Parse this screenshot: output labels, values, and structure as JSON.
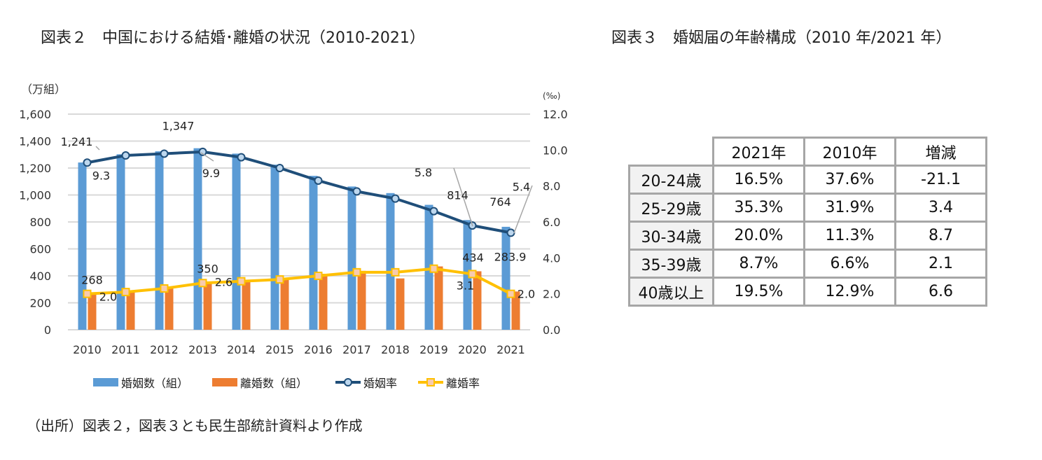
{
  "figure2_title": "図表２　中国における結婚･離婚の状況（2010-2021）",
  "figure3_title": "図表３　婚姻届の年齢構成（2010 年/2021 年）",
  "source_note": "（出所）図表２，図表３とも民生部統計資料より作成",
  "chart_data": {
    "type": "bar+line",
    "categories": [
      "2010",
      "2011",
      "2012",
      "2013",
      "2014",
      "2015",
      "2016",
      "2017",
      "2018",
      "2019",
      "2020",
      "2021"
    ],
    "left_axis": {
      "unit_label": "（万組）",
      "range": [
        0,
        1600
      ],
      "ticks": [
        "0",
        "200",
        "400",
        "600",
        "800",
        "1,000",
        "1,200",
        "1,400",
        "1,600"
      ]
    },
    "right_axis": {
      "unit_label": "(‰)",
      "range": [
        0,
        12
      ],
      "ticks": [
        "0.0",
        "2.0",
        "4.0",
        "6.0",
        "8.0",
        "10.0",
        "12.0"
      ]
    },
    "grid": true,
    "legend_position": "bottom",
    "series": [
      {
        "name": "婚姻数（組）",
        "type": "bar",
        "axis": "left",
        "color": "#5b9bd5",
        "values": [
          1241,
          1302,
          1324,
          1347,
          1307,
          1225,
          1142,
          1063,
          1014,
          927,
          814,
          764
        ]
      },
      {
        "name": "離婚数（組）",
        "type": "bar",
        "axis": "left",
        "color": "#ed7d31",
        "values": [
          268,
          287,
          310,
          350,
          364,
          384,
          415,
          437,
          381,
          470,
          434,
          283.9
        ]
      },
      {
        "name": "婚姻率",
        "type": "line",
        "axis": "right",
        "color": "#1f4e79",
        "values": [
          9.3,
          9.7,
          9.8,
          9.9,
          9.6,
          9.0,
          8.3,
          7.7,
          7.3,
          6.6,
          5.8,
          5.4
        ]
      },
      {
        "name": "離婚率",
        "type": "line",
        "axis": "right",
        "color": "#ffc000",
        "values": [
          2.0,
          2.1,
          2.3,
          2.6,
          2.7,
          2.8,
          3.0,
          3.2,
          3.2,
          3.4,
          3.1,
          2.0
        ]
      }
    ],
    "data_labels": [
      {
        "series": 0,
        "index": 0,
        "text": "1,241"
      },
      {
        "series": 0,
        "index": 3,
        "text": "1,347"
      },
      {
        "series": 0,
        "index": 10,
        "text": "814"
      },
      {
        "series": 0,
        "index": 11,
        "text": "764"
      },
      {
        "series": 1,
        "index": 0,
        "text": "268"
      },
      {
        "series": 1,
        "index": 3,
        "text": "350"
      },
      {
        "series": 1,
        "index": 10,
        "text": "434"
      },
      {
        "series": 1,
        "index": 11,
        "text": "283.9"
      },
      {
        "series": 2,
        "index": 0,
        "text": "9.3"
      },
      {
        "series": 2,
        "index": 3,
        "text": "9.9"
      },
      {
        "series": 2,
        "index": 10,
        "text": "5.8"
      },
      {
        "series": 2,
        "index": 11,
        "text": "5.4"
      },
      {
        "series": 3,
        "index": 0,
        "text": "2.0"
      },
      {
        "series": 3,
        "index": 3,
        "text": "2.6"
      },
      {
        "series": 3,
        "index": 10,
        "text": "3.1"
      },
      {
        "series": 3,
        "index": 11,
        "text": "2.0"
      }
    ]
  },
  "table": {
    "headers": [
      "",
      "2021年",
      "2010年",
      "増減"
    ],
    "rows": [
      [
        "20-24歳",
        "16.5%",
        "37.6%",
        "-21.1"
      ],
      [
        "25-29歳",
        "35.3%",
        "31.9%",
        "3.4"
      ],
      [
        "30-34歳",
        "20.0%",
        "11.3%",
        "8.7"
      ],
      [
        "35-39歳",
        "8.7%",
        "6.6%",
        "2.1"
      ],
      [
        "40歳以上",
        "19.5%",
        "12.9%",
        "6.6"
      ]
    ]
  }
}
